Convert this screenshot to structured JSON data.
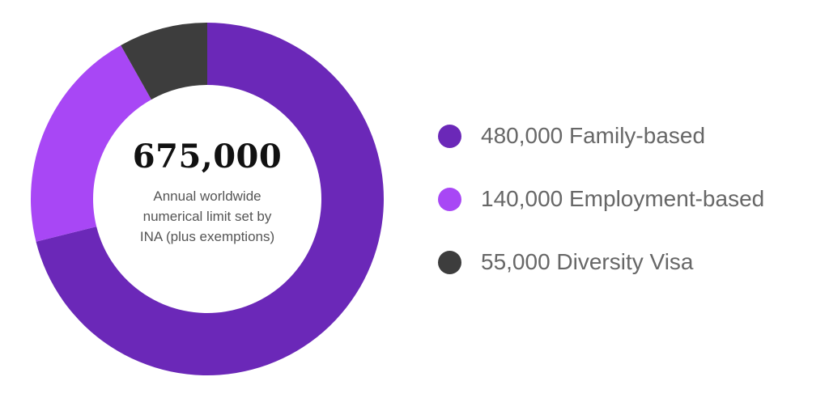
{
  "chart_data": {
    "type": "pie",
    "variant": "donut",
    "center_value": "675,000",
    "center_caption_lines": [
      "Annual worldwide",
      "numerical limit set by",
      "INA (plus exemptions)"
    ],
    "categories": [
      "Family-based",
      "Employment-based",
      "Diversity Visa"
    ],
    "values": [
      480000,
      140000,
      55000
    ],
    "legend_labels": [
      "480,000 Family-based",
      "140,000 Employment-based",
      "55,000 Diversity Visa"
    ],
    "colors": [
      "#6b28b8",
      "#a847f5",
      "#3d3d3d"
    ],
    "legend_position": "right"
  }
}
